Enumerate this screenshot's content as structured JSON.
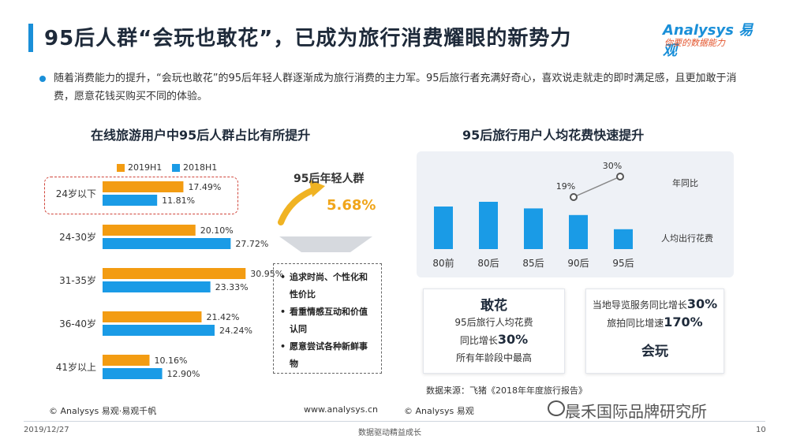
{
  "header": {
    "title": "95后人群“会玩也敢花”，已成为旅行消费耀眼的新势力",
    "logo_main": "Analysys 易观",
    "logo_sub": "你要的数据能力"
  },
  "intro": "随着消费能力的提升，“会玩也敢花”的95后年轻人群逐渐成为旅行消费的主力军。95后旅行者充满好奇心，喜欢说走就走的即时满足感，且更加敢于消费，愿意花钱买购买不同的体验。",
  "callout": {
    "title": "95后年轻人群",
    "pct": "5.68%",
    "traits": [
      "追求时尚、个性化和性价比",
      "看重情感互动和价值认同",
      "愿意尝试各种新鲜事物"
    ]
  },
  "cards": {
    "left": {
      "head": "敢花",
      "line1": "95后旅行人均花费",
      "line2_prefix": "同比增长",
      "line2_value": "30%",
      "line3": "所有年龄段中最高"
    },
    "right": {
      "line1_prefix": "当地导览服务同比增长",
      "line1_value": "30%",
      "line2_prefix": "旅拍同比增速",
      "line2_value": "170%",
      "head": "会玩"
    }
  },
  "source": "数据来源：飞猪《2018年年度旅行报告》",
  "footer": {
    "left": "© Analysys 易观·易观千帆",
    "mid": "www.analysys.cn",
    "right": "© Analysys 易观",
    "watermark": "晨禾国际品牌研究所",
    "date": "2019/12/27",
    "slogan": "数据驱动精益成长",
    "page": "10"
  },
  "colors": {
    "orange": "#f39c12",
    "blue": "#1a9be6",
    "title_accent": "#1a8fd8"
  },
  "chart_data": [
    {
      "type": "bar",
      "orientation": "horizontal",
      "title": "在线旅游用户中95后人群占比有所提升",
      "categories": [
        "24岁以下",
        "24-30岁",
        "31-35岁",
        "36-40岁",
        "41岁以上"
      ],
      "series": [
        {
          "name": "2019H1",
          "color": "#f39c12",
          "values": [
            17.49,
            20.1,
            30.95,
            21.42,
            10.16
          ]
        },
        {
          "name": "2018H1",
          "color": "#1a9be6",
          "values": [
            11.81,
            27.72,
            23.33,
            24.24,
            12.9
          ]
        }
      ],
      "value_labels": [
        [
          "17.49%",
          "20.10%",
          "30.95%",
          "21.42%",
          "10.16%"
        ],
        [
          "11.81%",
          "27.72%",
          "23.33%",
          "24.24%",
          "12.90%"
        ]
      ],
      "xlim": [
        0,
        35
      ],
      "legend": "top"
    },
    {
      "type": "bar",
      "title": "95后旅行用户人均花费快速提升",
      "categories": [
        "80前",
        "80后",
        "85后",
        "90后",
        "95后"
      ],
      "bar_label": "人均出行花费",
      "line_label": "年同比",
      "line_points": [
        {
          "category": "90后",
          "label": "19%"
        },
        {
          "category": "95后",
          "label": "30%"
        }
      ],
      "relative_bar_heights": [
        0.9,
        1.0,
        0.86,
        0.72,
        0.42
      ]
    }
  ]
}
